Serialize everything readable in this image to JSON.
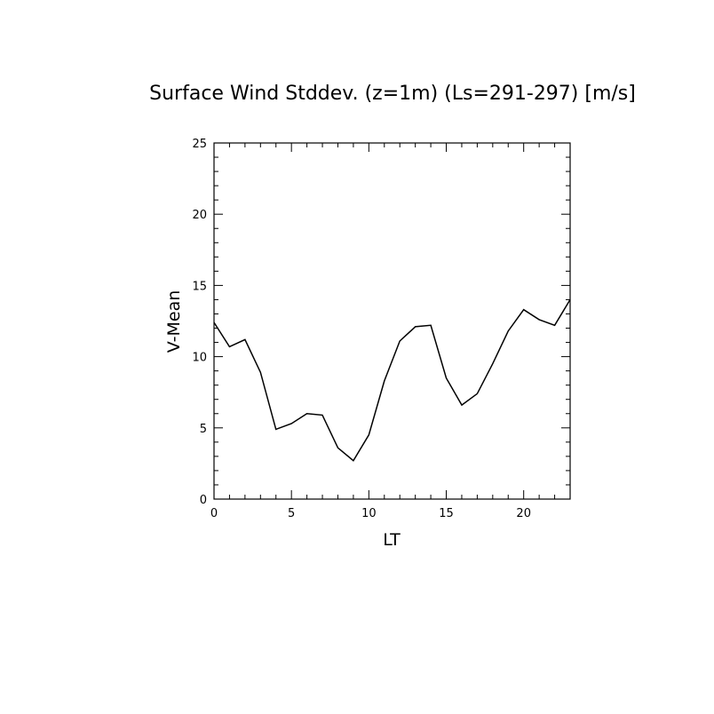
{
  "chart_data": {
    "type": "line",
    "title": "Surface Wind Stddev. (z=1m) (Ls=291-297) [m/s]",
    "xlabel": "LT",
    "ylabel": "V-Mean",
    "xlim": [
      0,
      23
    ],
    "ylim": [
      0,
      25
    ],
    "x_ticks": [
      0,
      5,
      10,
      15,
      20
    ],
    "x_tick_labels": [
      "0",
      "5",
      "10",
      "15",
      "20"
    ],
    "y_ticks": [
      0,
      5,
      10,
      15,
      20,
      25
    ],
    "y_tick_labels": [
      "0",
      "5",
      "10",
      "15",
      "20",
      "25"
    ],
    "grid": false,
    "series": [
      {
        "x": [
          0,
          1,
          2,
          3,
          4,
          5,
          6,
          7,
          8,
          9,
          10,
          11,
          12,
          13,
          14,
          15,
          16,
          17,
          18,
          19,
          20,
          21,
          22,
          23
        ],
        "values": [
          12.4,
          10.7,
          11.2,
          8.9,
          4.9,
          5.3,
          6.0,
          5.9,
          3.6,
          2.7,
          4.5,
          8.3,
          11.1,
          12.1,
          12.2,
          8.5,
          6.6,
          7.4,
          9.5,
          11.8,
          13.3,
          12.6,
          12.2,
          14.0
        ]
      }
    ],
    "line_color": "#000000"
  }
}
